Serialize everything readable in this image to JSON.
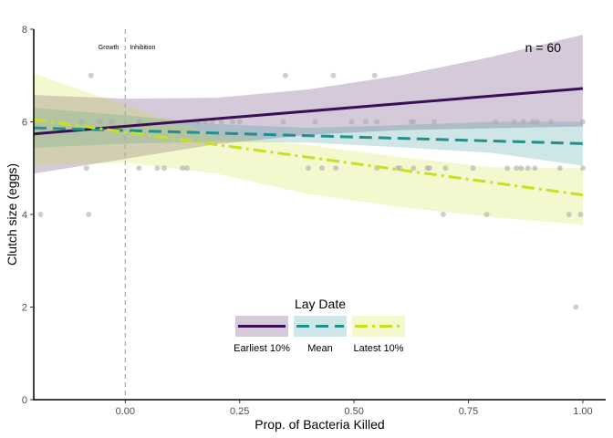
{
  "chart_data": {
    "type": "scatter",
    "xlabel": "Prop. of Bacteria Killed",
    "ylabel": "Clutch size (eggs)",
    "xlim": [
      -0.2,
      1.05
    ],
    "ylim": [
      0,
      8
    ],
    "x_ticks": [
      0.0,
      0.25,
      0.5,
      0.75,
      1.0
    ],
    "x_tick_labels": [
      "0.00",
      "0.25",
      "0.50",
      "0.75",
      "1.00"
    ],
    "y_ticks": [
      0,
      2,
      4,
      6,
      8
    ],
    "y_tick_labels": [
      "0",
      "2",
      "4",
      "6",
      "8"
    ],
    "grid": false,
    "annotation": "n = 60",
    "vline": {
      "x": 0.0,
      "left_label": "Growth",
      "right_label": "Inhibition"
    },
    "legend": {
      "title": "Lay Date",
      "placement": "bottom-center"
    },
    "points": [
      {
        "x": -0.185,
        "y": 4
      },
      {
        "x": -0.095,
        "y": 6
      },
      {
        "x": -0.085,
        "y": 5
      },
      {
        "x": -0.08,
        "y": 4
      },
      {
        "x": -0.075,
        "y": 7
      },
      {
        "x": -0.055,
        "y": 6
      },
      {
        "x": -0.03,
        "y": 6
      },
      {
        "x": 0.03,
        "y": 6
      },
      {
        "x": 0.03,
        "y": 5
      },
      {
        "x": 0.07,
        "y": 5
      },
      {
        "x": 0.085,
        "y": 5
      },
      {
        "x": 0.125,
        "y": 5
      },
      {
        "x": 0.135,
        "y": 5
      },
      {
        "x": 0.16,
        "y": 6
      },
      {
        "x": 0.175,
        "y": 6
      },
      {
        "x": 0.19,
        "y": 6
      },
      {
        "x": 0.21,
        "y": 6
      },
      {
        "x": 0.235,
        "y": 6
      },
      {
        "x": 0.25,
        "y": 6
      },
      {
        "x": 0.345,
        "y": 6
      },
      {
        "x": 0.35,
        "y": 7
      },
      {
        "x": 0.4,
        "y": 5
      },
      {
        "x": 0.415,
        "y": 6
      },
      {
        "x": 0.43,
        "y": 5
      },
      {
        "x": 0.455,
        "y": 7
      },
      {
        "x": 0.46,
        "y": 5
      },
      {
        "x": 0.495,
        "y": 6
      },
      {
        "x": 0.525,
        "y": 6
      },
      {
        "x": 0.545,
        "y": 7
      },
      {
        "x": 0.55,
        "y": 5
      },
      {
        "x": 0.55,
        "y": 6
      },
      {
        "x": 0.595,
        "y": 5
      },
      {
        "x": 0.6,
        "y": 5
      },
      {
        "x": 0.625,
        "y": 6
      },
      {
        "x": 0.63,
        "y": 6
      },
      {
        "x": 0.63,
        "y": 5
      },
      {
        "x": 0.66,
        "y": 5
      },
      {
        "x": 0.665,
        "y": 5
      },
      {
        "x": 0.675,
        "y": 6
      },
      {
        "x": 0.695,
        "y": 4
      },
      {
        "x": 0.7,
        "y": 5
      },
      {
        "x": 0.76,
        "y": 5
      },
      {
        "x": 0.79,
        "y": 4
      },
      {
        "x": 0.81,
        "y": 6
      },
      {
        "x": 0.835,
        "y": 5
      },
      {
        "x": 0.85,
        "y": 6
      },
      {
        "x": 0.855,
        "y": 5
      },
      {
        "x": 0.865,
        "y": 5
      },
      {
        "x": 0.87,
        "y": 6
      },
      {
        "x": 0.88,
        "y": 5
      },
      {
        "x": 0.89,
        "y": 6
      },
      {
        "x": 0.895,
        "y": 5
      },
      {
        "x": 0.9,
        "y": 6
      },
      {
        "x": 0.93,
        "y": 6
      },
      {
        "x": 0.95,
        "y": 5
      },
      {
        "x": 0.97,
        "y": 4
      },
      {
        "x": 0.985,
        "y": 2
      },
      {
        "x": 0.995,
        "y": 4
      },
      {
        "x": 1.0,
        "y": 6
      },
      {
        "x": 1.0,
        "y": 5
      }
    ],
    "series": [
      {
        "name": "Earliest 10%",
        "color": "#3b0f56",
        "line_style": "solid",
        "fit": [
          [
            -0.2,
            5.74
          ],
          [
            1.0,
            6.72
          ]
        ],
        "ribbon": [
          [
            -0.2,
            4.88,
            6.58
          ],
          [
            0.0,
            5.2,
            6.5
          ],
          [
            0.2,
            5.52,
            6.52
          ],
          [
            0.4,
            5.72,
            6.7
          ],
          [
            0.6,
            5.82,
            7.0
          ],
          [
            0.8,
            5.86,
            7.4
          ],
          [
            1.0,
            5.9,
            7.88
          ]
        ]
      },
      {
        "name": "Mean",
        "color": "#21908d",
        "line_style": "dashed",
        "fit": [
          [
            -0.2,
            5.87
          ],
          [
            1.0,
            5.53
          ]
        ],
        "ribbon": [
          [
            -0.2,
            5.44,
            6.3
          ],
          [
            0.0,
            5.53,
            6.14
          ],
          [
            0.2,
            5.57,
            5.95
          ],
          [
            0.4,
            5.55,
            5.87
          ],
          [
            0.6,
            5.45,
            5.93
          ],
          [
            0.8,
            5.33,
            6.0
          ],
          [
            1.0,
            5.05,
            6.0
          ]
        ]
      },
      {
        "name": "Latest 10%",
        "color": "#c8e020",
        "line_style": "dotdash",
        "fit": [
          [
            -0.2,
            6.05
          ],
          [
            1.0,
            4.42
          ]
        ],
        "ribbon": [
          [
            -0.2,
            5.06,
            7.04
          ],
          [
            0.0,
            5.12,
            6.36
          ],
          [
            0.2,
            4.88,
            5.7
          ],
          [
            0.4,
            4.44,
            5.5
          ],
          [
            0.6,
            4.16,
            5.24
          ],
          [
            0.8,
            3.94,
            5.02
          ],
          [
            1.0,
            3.78,
            5.0
          ]
        ]
      }
    ]
  }
}
